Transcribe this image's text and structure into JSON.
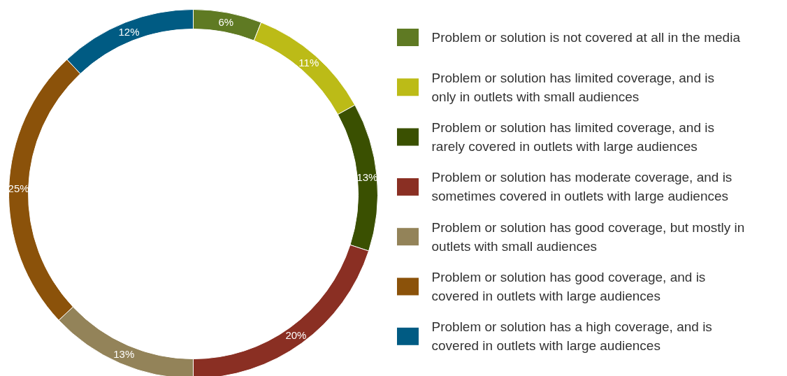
{
  "chart_data": {
    "type": "donut",
    "categories": [
      "Problem or solution is not covered at all in the media",
      "Problem or solution has limited coverage, and is only in outlets with small audiences",
      "Problem or solution has limited coverage, and is rarely covered in outlets with large audiences",
      "Problem or solution has moderate coverage, and is sometimes covered in outlets with large audiences",
      "Problem or solution has good coverage, but mostly in outlets with small audiences",
      "Problem or solution has good coverage, and is covered in outlets with large audiences",
      "Problem or solution has a high coverage, and is covered in outlets with large audiences"
    ],
    "values": [
      6,
      11,
      13,
      20,
      13,
      25,
      12
    ],
    "colors": [
      "#5f7a23",
      "#bcbb17",
      "#3a5001",
      "#8a2f23",
      "#938359",
      "#8b520a",
      "#005b83"
    ],
    "value_labels": [
      "6%",
      "11%",
      "13%",
      "20%",
      "13%",
      "25%",
      "12%"
    ],
    "legend": "right"
  }
}
